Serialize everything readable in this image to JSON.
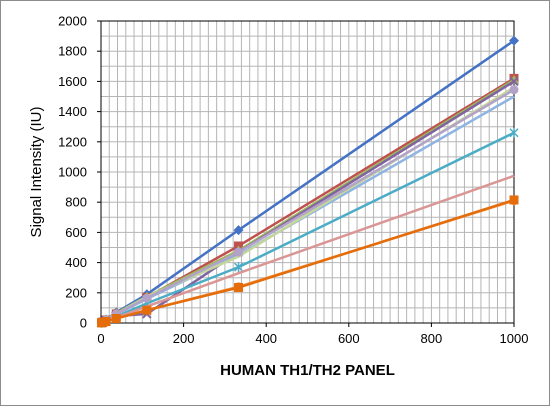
{
  "chart_data": {
    "type": "line",
    "title": "",
    "xlabel": "HUMAN TH1/TH2 PANEL",
    "ylabel": "Signal Intensity (IU)",
    "xlim": [
      0,
      1000
    ],
    "ylim": [
      0,
      2000
    ],
    "x_ticks": [
      0,
      200,
      400,
      600,
      800,
      1000
    ],
    "y_ticks": [
      0,
      200,
      400,
      600,
      800,
      1000,
      1200,
      1400,
      1600,
      1800,
      2000
    ],
    "x_minor_step": 20,
    "y_minor_step": 100,
    "grid": true,
    "legend": "none",
    "series": [
      {
        "color": "#4472c4",
        "marker": "diamond",
        "x": [
          1.4,
          4.1,
          12.3,
          37,
          111,
          333,
          1000
        ],
        "y": [
          3,
          8,
          23,
          70,
          190,
          615,
          1870
        ]
      },
      {
        "color": "#c0504d",
        "marker": "square",
        "x": [
          1.4,
          4.1,
          12.3,
          37,
          111,
          333,
          1000
        ],
        "y": [
          2,
          6,
          20,
          60,
          170,
          510,
          1620
        ]
      },
      {
        "color": "#9bbb59",
        "marker": "triangle",
        "x": [
          1.4,
          4.1,
          12.3,
          37,
          111,
          333,
          1000
        ],
        "y": [
          2,
          7,
          22,
          65,
          175,
          480,
          1610
        ]
      },
      {
        "color": "#8064a2",
        "marker": "x",
        "x": [
          1.4,
          4.1,
          12.3,
          37,
          111,
          333,
          1000
        ],
        "y": [
          2,
          5,
          15,
          45,
          60,
          470,
          1600
        ]
      },
      {
        "color": "#4bacc6",
        "marker": "star",
        "x": [
          1.4,
          4.1,
          12.3,
          37,
          111,
          333,
          1000
        ],
        "y": [
          2,
          5,
          14,
          42,
          130,
          370,
          1260
        ]
      },
      {
        "color": "#f79646",
        "marker": "circle",
        "x": [
          1.4,
          4.1,
          12.3,
          37,
          111,
          333,
          1000
        ],
        "y": [
          1,
          4,
          10,
          30,
          85,
          240,
          810
        ]
      },
      {
        "color": "#8eb4e3",
        "marker": "none",
        "x": [
          1.4,
          4.1,
          12.3,
          37,
          111,
          333,
          1000
        ],
        "y": [
          2,
          6,
          18,
          55,
          160,
          450,
          1500
        ]
      },
      {
        "color": "#d99694",
        "marker": "none",
        "x": [
          1.4,
          4.1,
          12.3,
          37,
          111,
          333,
          1000
        ],
        "y": [
          2,
          4,
          12,
          36,
          110,
          330,
          975
        ]
      },
      {
        "color": "#c3d69b",
        "marker": "none",
        "x": [
          1.4,
          4.1,
          12.3,
          37,
          111,
          333,
          1000
        ],
        "y": [
          2,
          6,
          20,
          60,
          175,
          440,
          1560
        ]
      },
      {
        "color": "#b3a2c7",
        "marker": "circle",
        "x": [
          1.4,
          4.1,
          12.3,
          37,
          111,
          333,
          1000
        ],
        "y": [
          2,
          6,
          20,
          60,
          165,
          470,
          1545
        ]
      },
      {
        "color": "#e46c0a",
        "marker": "square",
        "x": [
          1.4,
          4.1,
          12.3,
          37,
          111,
          333,
          1000
        ],
        "y": [
          1,
          4,
          10,
          30,
          85,
          235,
          815
        ]
      }
    ]
  }
}
